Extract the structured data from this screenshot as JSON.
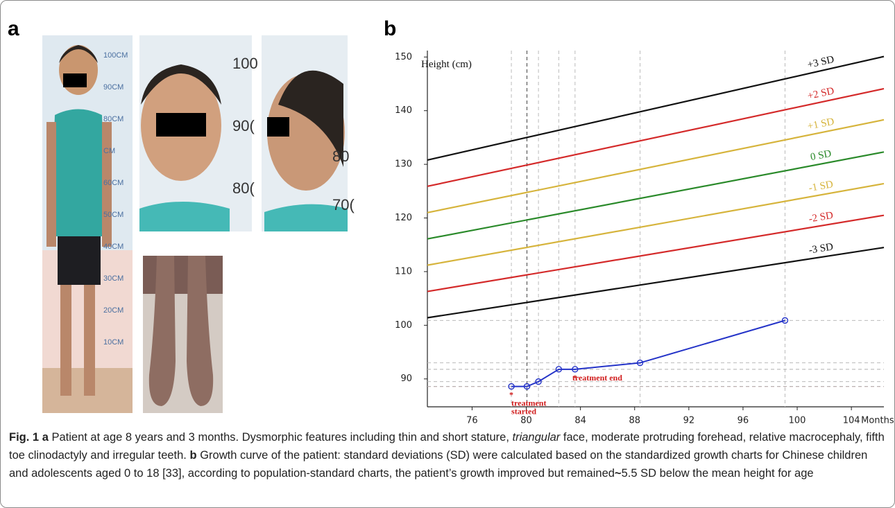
{
  "panel_a": {
    "label": "a",
    "ruler_full": [
      "100CM",
      "90CM",
      "80CM",
      "CM",
      "60CM",
      "50CM",
      "40CM",
      "30CM",
      "20CM",
      "10CM"
    ],
    "ruler_front": [
      "100",
      "90(",
      "80("
    ],
    "ruler_side": [
      "80",
      "70("
    ]
  },
  "panel_b": {
    "label": "b"
  },
  "chart_data": {
    "type": "line",
    "ylabel": "Height (cm)",
    "xlabel": "Months",
    "xlim": [
      72.7,
      106.4
    ],
    "ylim": [
      84.8,
      151.2
    ],
    "xticks": [
      76,
      80,
      84,
      88,
      92,
      96,
      100,
      104
    ],
    "yticks": [
      90,
      100,
      110,
      120,
      130,
      140,
      150
    ],
    "series": [
      {
        "name": "+3 SD",
        "color": "#111111",
        "x": [
          72.7,
          106.4
        ],
        "values": [
          130.8,
          150.1
        ]
      },
      {
        "name": "+2 SD",
        "color": "#d42a2a",
        "x": [
          72.7,
          106.4
        ],
        "values": [
          125.9,
          144.1
        ]
      },
      {
        "name": "+1 SD",
        "color": "#d6b43c",
        "x": [
          72.7,
          106.4
        ],
        "values": [
          121.0,
          138.3
        ]
      },
      {
        "name": "0 SD",
        "color": "#2a8a2a",
        "x": [
          72.7,
          106.4
        ],
        "values": [
          116.1,
          132.3
        ]
      },
      {
        "name": "-1 SD",
        "color": "#d6b43c",
        "x": [
          72.7,
          106.4
        ],
        "values": [
          111.2,
          126.4
        ]
      },
      {
        "name": "-2 SD",
        "color": "#d42a2a",
        "x": [
          72.7,
          106.4
        ],
        "values": [
          106.3,
          120.5
        ]
      },
      {
        "name": "-3 SD",
        "color": "#111111",
        "x": [
          72.7,
          106.4
        ],
        "values": [
          101.4,
          114.5
        ]
      },
      {
        "color": "#2433c8",
        "x": [
          78.9,
          80.05,
          80.9,
          82.4,
          83.6,
          88.4,
          99.1
        ],
        "values": [
          88.6,
          88.6,
          89.5,
          91.8,
          91.8,
          93.0,
          100.9
        ]
      }
    ],
    "marker_text": "*",
    "annotations": [
      [
        "treatment",
        "started"
      ],
      [
        "treatment end"
      ]
    ]
  },
  "caption": {
    "fig": "Fig. 1",
    "a_label": "a",
    "a_text_1": "Patient at age 8 years and 3 months. Dysmorphic features including thin and short stature,",
    "a_italic": "triangular",
    "a_text_2": "face, moderate protruding forehead, relative macrocephaly, fifth toe clinodactyly and irregular teeth.",
    "b_label": "b",
    "b_text_1": "Growth curve of the patient: standard deviations (SD) were calculated based on the standardized growth charts for Chinese children and adolescents aged 0 to 18 [33], according to population-standard charts, the patient’s growth improved but remained",
    "b_tilde": "~",
    "b_text_2": "5.5 SD below the mean height for age"
  }
}
